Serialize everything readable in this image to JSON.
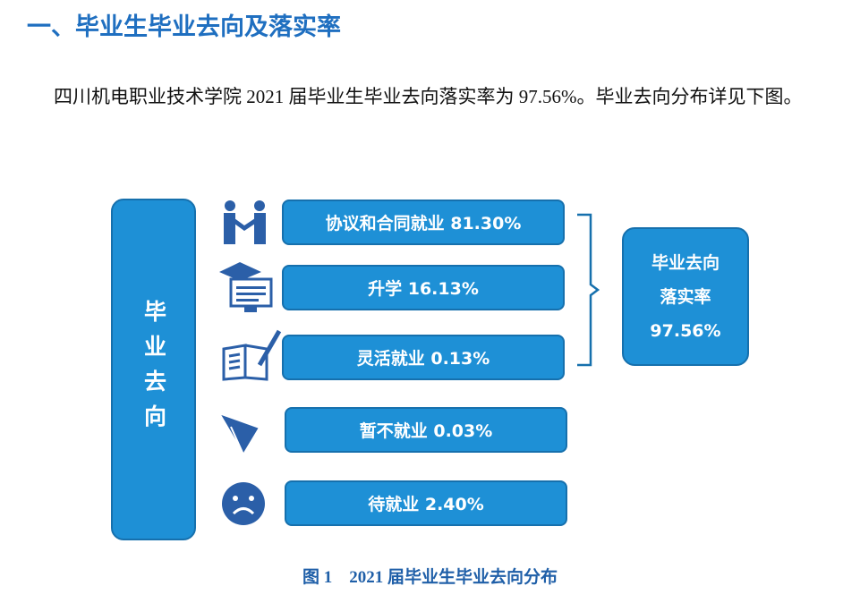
{
  "heading": "一、毕业生毕业去向及落实率",
  "paragraph": "四川机电职业技术学院 2021 届毕业生毕业去向落实率为 97.56%。毕业去向分布详见下图。",
  "figure": {
    "side_label": "毕业去向",
    "items": [
      "协议和合同就业 81.30%",
      "升学 16.13%",
      "灵活就业 0.13%",
      "暂不就业 0.03%",
      "待就业 2.40%"
    ],
    "summary": [
      "毕业去向",
      "落实率",
      "97.56%"
    ],
    "caption": "图 1　2021 届毕业生毕业去向分布"
  }
}
